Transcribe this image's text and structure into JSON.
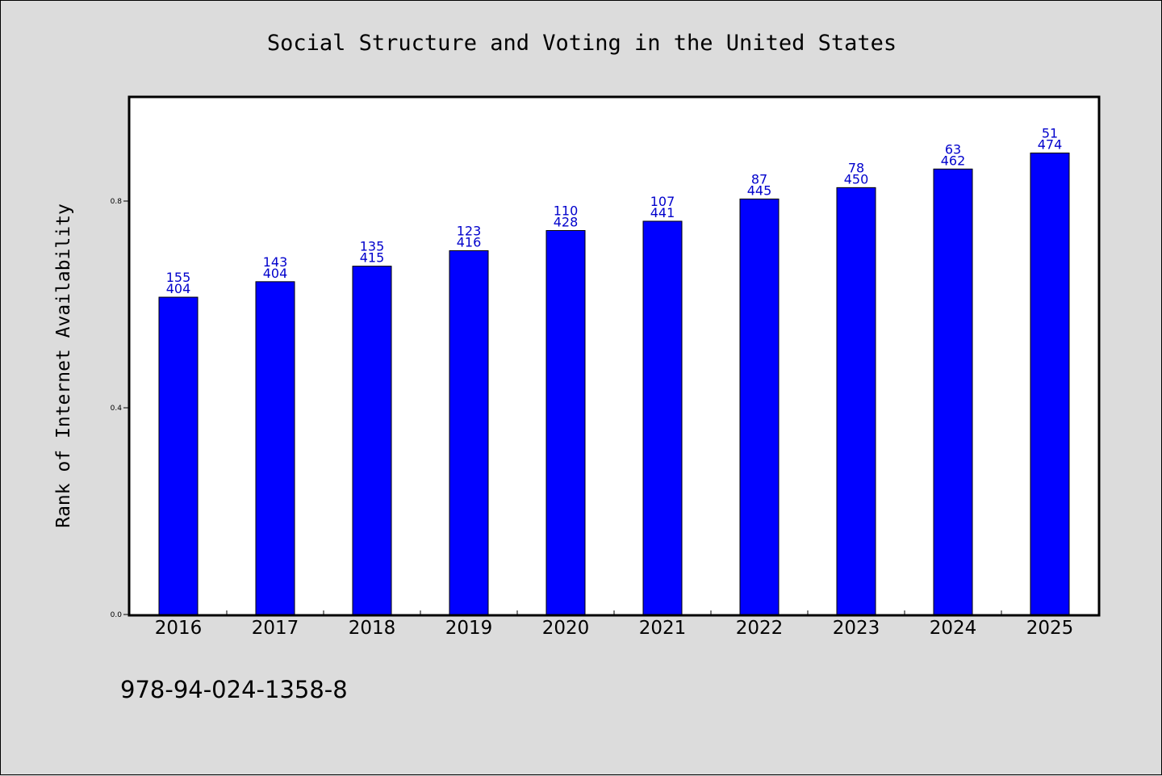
{
  "chart_data": {
    "type": "bar",
    "title": "Social Structure and Voting in the United States",
    "xlabel": "",
    "ylabel": "Rank of Internet Availability",
    "categories": [
      "2016",
      "2017",
      "2018",
      "2019",
      "2020",
      "2021",
      "2022",
      "2023",
      "2024",
      "2025"
    ],
    "values": [
      0.614,
      0.644,
      0.674,
      0.704,
      0.743,
      0.761,
      0.804,
      0.826,
      0.862,
      0.893
    ],
    "bar_labels_top": [
      "155",
      "143",
      "135",
      "123",
      "110",
      "107",
      "87",
      "78",
      "63",
      "51"
    ],
    "bar_labels_bottom": [
      "404",
      "404",
      "415",
      "416",
      "428",
      "441",
      "445",
      "450",
      "462",
      "474"
    ],
    "ylim": [
      0,
      1.0
    ],
    "yticks": [
      0.0,
      0.4,
      0.8
    ],
    "ytick_labels": [
      "0.0",
      "0.4",
      "0.8"
    ],
    "grid": false,
    "bar_color": "#0000ff",
    "label_color": "#0000cc"
  },
  "footer": {
    "isbn": "978-94-024-1358-8"
  }
}
